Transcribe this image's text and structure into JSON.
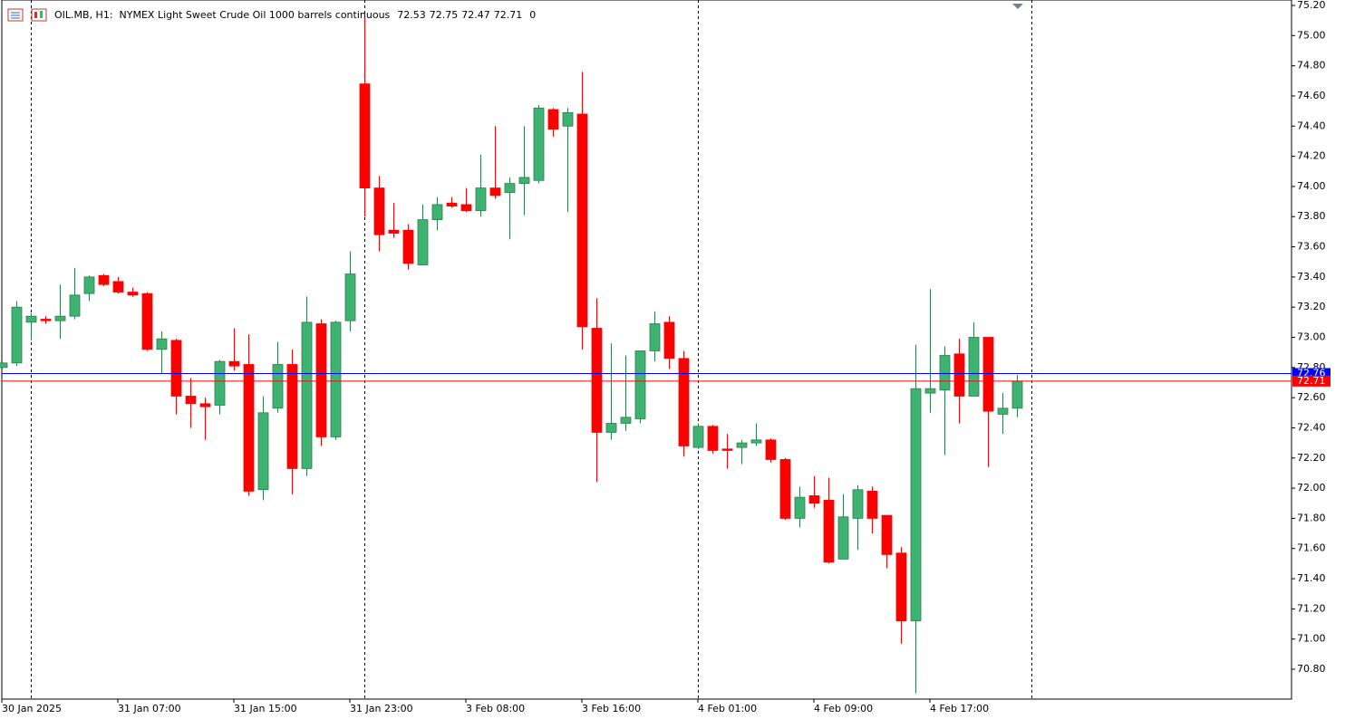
{
  "chart_data": {
    "type": "candlestick",
    "title": "OIL.MB, H1:  NYMEX Light Sweet Crude Oil 1000 barrels continuous",
    "header_value": 0,
    "categories": [
      "30 Jan 2025",
      null,
      null,
      null,
      null,
      null,
      null,
      null,
      "31 Jan 07:00",
      null,
      null,
      null,
      null,
      null,
      null,
      null,
      "31 Jan 15:00",
      null,
      null,
      null,
      null,
      null,
      null,
      null,
      "31 Jan 23:00",
      null,
      null,
      null,
      null,
      null,
      null,
      null,
      "3 Feb 08:00",
      null,
      null,
      null,
      null,
      null,
      null,
      null,
      "3 Feb 16:00",
      null,
      null,
      null,
      null,
      null,
      null,
      null,
      "4 Feb 01:00",
      null,
      null,
      null,
      null,
      null,
      null,
      null,
      "4 Feb 09:00",
      null,
      null,
      null,
      null,
      null,
      null,
      null,
      "4 Feb 17:00",
      null,
      null,
      null,
      null,
      null,
      null
    ],
    "open": [
      72.8,
      72.83,
      73.1,
      73.12,
      73.11,
      73.14,
      73.29,
      73.41,
      73.37,
      73.3,
      73.29,
      72.92,
      72.98,
      72.61,
      72.56,
      72.55,
      72.84,
      72.82,
      71.99,
      72.53,
      72.82,
      72.13,
      73.09,
      72.34,
      73.11,
      74.68,
      73.99,
      73.71,
      73.71,
      73.48,
      73.78,
      73.89,
      73.88,
      73.84,
      73.99,
      73.96,
      74.02,
      74.04,
      74.51,
      74.4,
      74.48,
      73.06,
      72.37,
      72.43,
      72.46,
      72.91,
      73.1,
      72.86,
      72.27,
      72.41,
      72.26,
      72.27,
      72.3,
      72.32,
      72.19,
      71.8,
      71.95,
      71.92,
      71.53,
      71.8,
      71.98,
      71.82,
      71.57,
      71.12,
      72.63,
      72.65,
      72.89,
      72.61,
      73.0,
      72.49,
      72.53
    ],
    "high": [
      72.84,
      73.24,
      73.16,
      73.14,
      73.35,
      73.46,
      73.41,
      73.42,
      73.4,
      73.33,
      73.3,
      73.04,
      72.99,
      72.73,
      72.6,
      72.85,
      73.06,
      73.02,
      72.61,
      72.97,
      72.92,
      73.27,
      73.12,
      73.11,
      73.57,
      75.12,
      74.07,
      73.89,
      73.75,
      73.88,
      73.93,
      73.93,
      73.99,
      74.21,
      74.4,
      74.06,
      74.4,
      74.54,
      74.52,
      74.52,
      74.76,
      73.26,
      72.96,
      72.88,
      72.91,
      73.17,
      73.14,
      72.91,
      72.43,
      72.42,
      72.36,
      72.32,
      72.43,
      72.33,
      72.2,
      72.01,
      72.08,
      72.07,
      71.96,
      72.02,
      72.01,
      71.82,
      71.61,
      72.95,
      73.32,
      72.94,
      72.99,
      73.1,
      73.0,
      72.63,
      72.75
    ],
    "low": [
      72.79,
      72.81,
      72.98,
      73.09,
      72.99,
      73.12,
      73.24,
      73.34,
      73.29,
      73.27,
      72.91,
      72.76,
      72.49,
      72.4,
      72.32,
      72.49,
      72.78,
      71.95,
      71.92,
      72.5,
      71.96,
      72.08,
      72.28,
      72.32,
      73.04,
      73.8,
      73.57,
      73.66,
      73.45,
      73.48,
      73.71,
      73.86,
      73.83,
      73.8,
      73.92,
      73.65,
      73.81,
      74.02,
      74.33,
      73.83,
      72.92,
      72.04,
      72.32,
      72.38,
      72.43,
      72.84,
      72.79,
      72.21,
      72.26,
      72.23,
      72.13,
      72.16,
      72.28,
      72.17,
      71.79,
      71.74,
      71.87,
      71.5,
      71.53,
      71.59,
      71.7,
      71.47,
      70.97,
      70.64,
      72.5,
      72.22,
      72.43,
      72.61,
      72.14,
      72.36,
      72.47
    ],
    "close": [
      72.83,
      73.2,
      73.14,
      73.11,
      73.14,
      73.28,
      73.4,
      73.35,
      73.3,
      73.28,
      72.92,
      72.99,
      72.61,
      72.56,
      72.54,
      72.84,
      72.81,
      71.98,
      72.5,
      72.82,
      72.13,
      73.1,
      72.34,
      73.1,
      73.42,
      73.99,
      73.68,
      73.69,
      73.49,
      73.78,
      73.88,
      73.87,
      73.84,
      73.99,
      73.94,
      74.02,
      74.06,
      74.52,
      74.38,
      74.49,
      73.07,
      72.37,
      72.43,
      72.47,
      72.91,
      73.09,
      72.86,
      72.28,
      72.41,
      72.25,
      72.25,
      72.3,
      72.32,
      72.19,
      71.8,
      71.94,
      71.9,
      71.51,
      71.81,
      71.99,
      71.8,
      71.56,
      71.12,
      72.66,
      72.66,
      72.88,
      72.61,
      73.0,
      72.51,
      72.53,
      72.71
    ],
    "up_color": "#3cb371",
    "down_color": "#ff0000",
    "ylim": [
      70.602,
      75.236
    ],
    "yticks": [
      {
        "value": 75.2,
        "label": "75.20"
      },
      {
        "value": 75.0,
        "label": "75.00"
      },
      {
        "value": 74.8,
        "label": "74.80"
      },
      {
        "value": 74.6,
        "label": "74.60"
      },
      {
        "value": 74.4,
        "label": "74.40"
      },
      {
        "value": 74.2,
        "label": "74.20"
      },
      {
        "value": 74.0,
        "label": "74.00"
      },
      {
        "value": 73.8,
        "label": "73.80"
      },
      {
        "value": 73.6,
        "label": "73.60"
      },
      {
        "value": 73.4,
        "label": "73.40"
      },
      {
        "value": 73.2,
        "label": "73.20"
      },
      {
        "value": 73.0,
        "label": "73.00"
      },
      {
        "value": 72.8,
        "label": "72.80"
      },
      {
        "value": 72.6,
        "label": "72.60"
      },
      {
        "value": 72.4,
        "label": "72.40"
      },
      {
        "value": 72.2,
        "label": "72.20"
      },
      {
        "value": 72.0,
        "label": "72.00"
      },
      {
        "value": 71.8,
        "label": "71.80"
      },
      {
        "value": 71.6,
        "label": "71.60"
      },
      {
        "value": 71.4,
        "label": "71.40"
      },
      {
        "value": 71.2,
        "label": "71.20"
      },
      {
        "value": 71.0,
        "label": "71.00"
      },
      {
        "value": 70.8,
        "label": "70.80"
      }
    ],
    "price_lines": [
      {
        "value": 72.76,
        "color": "#0000ff"
      },
      {
        "value": 72.71,
        "color": "#ff0000"
      }
    ]
  }
}
